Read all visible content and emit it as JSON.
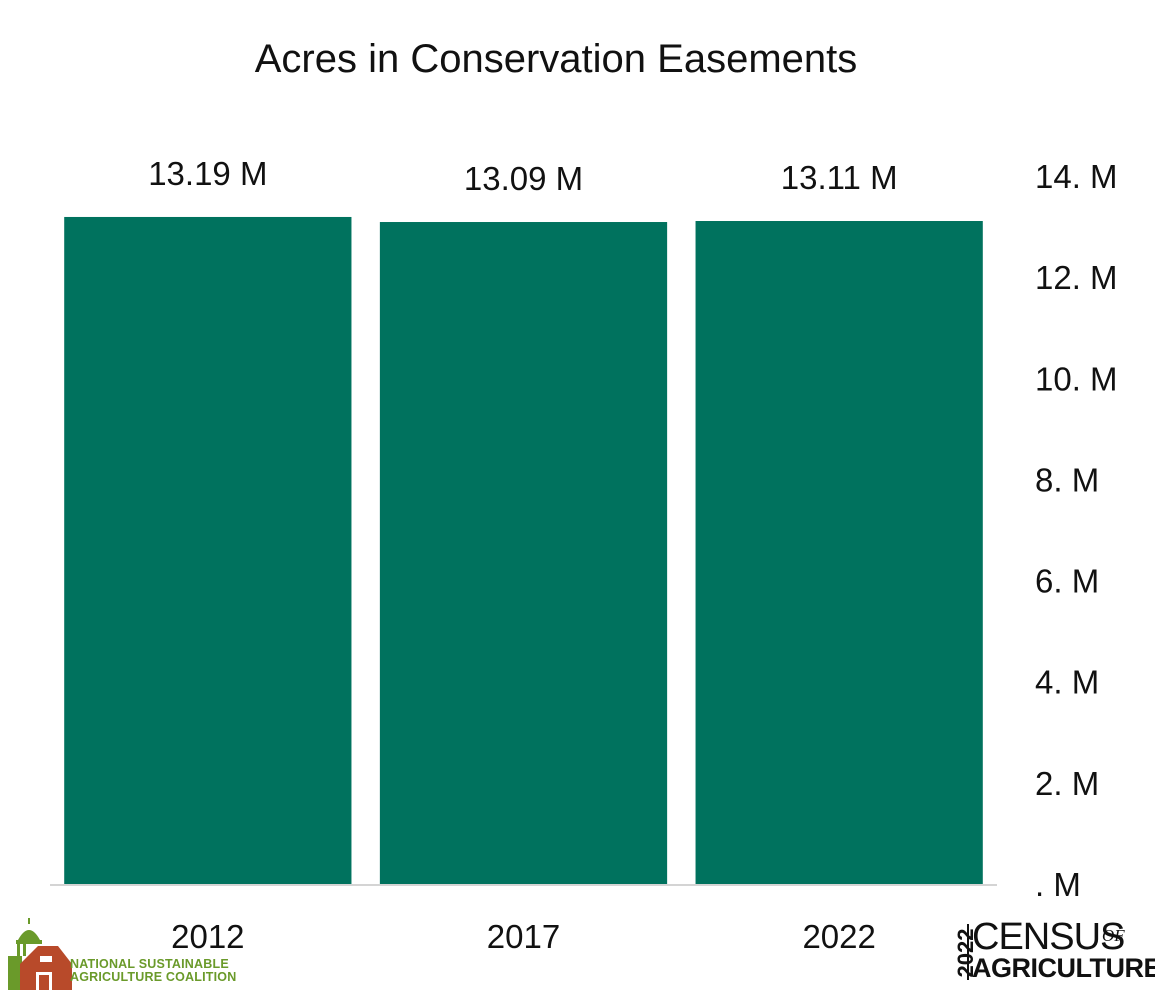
{
  "chart_data": {
    "type": "bar",
    "title": "Acres in Conservation Easements",
    "categories": [
      "2012",
      "2017",
      "2022"
    ],
    "values": [
      13190000,
      13090000,
      13110000
    ],
    "data_labels": [
      "13.19 M",
      "13.09 M",
      "13.11 M"
    ],
    "ylim": [
      0,
      14000000
    ],
    "y_ticks": [
      0,
      2000000,
      4000000,
      6000000,
      8000000,
      10000000,
      12000000,
      14000000
    ],
    "y_tick_labels": [
      ". M",
      "2. M",
      "4. M",
      "6. M",
      "8. M",
      "10. M",
      "12. M",
      "14. M"
    ],
    "y_axis_position": "right",
    "grid": false,
    "bar_color": "#00725e",
    "xlabel": "",
    "ylabel": ""
  },
  "logos": {
    "nsac": {
      "text": "NATIONAL SUSTAINABLE\nAGRICULTURE COALITION",
      "green": "#6a9a2a",
      "barn_red": "#b84a2a"
    },
    "census": {
      "year": "2022",
      "word1": "CENSUS",
      "word2": "OF",
      "word3": "AGRICULTURE"
    }
  }
}
